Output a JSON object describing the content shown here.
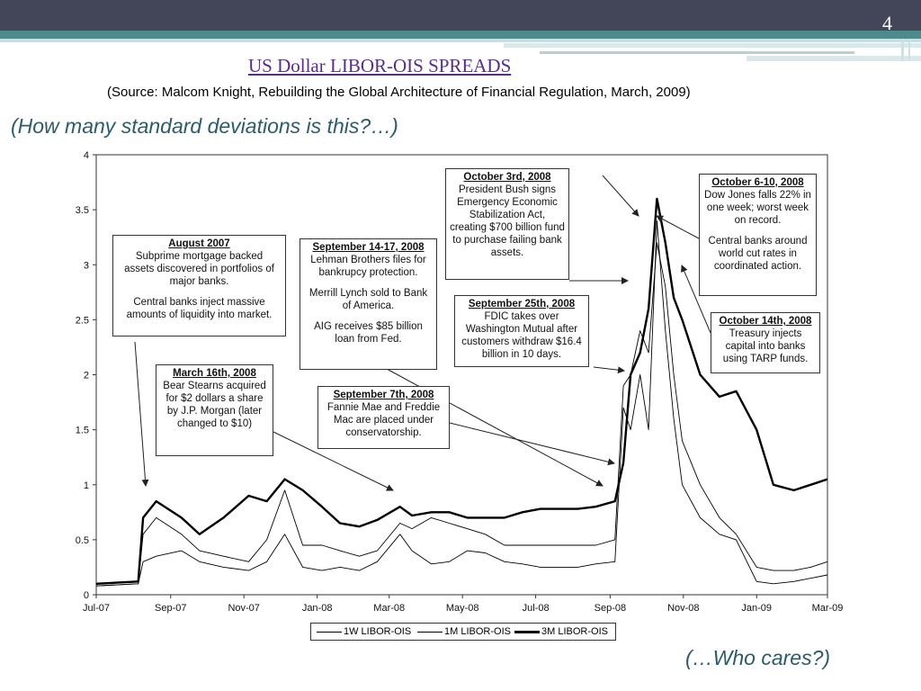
{
  "slide": {
    "number": "4",
    "title": "US Dollar LIBOR-OIS SPREADS",
    "source": "(Source:  Malcom Knight, Rebuilding the Global Architecture of Financial Regulation, March, 2009)",
    "question_top": "(How many standard deviations is this?…)",
    "question_bottom": "(…Who cares?)"
  },
  "annotations": {
    "aug2007": {
      "heading": "August 2007",
      "lines": [
        "Subprime mortgage backed",
        "assets discovered in portfolios of",
        "major banks.",
        "",
        "Central banks inject massive",
        "amounts of liquidity into market."
      ]
    },
    "mar2008": {
      "heading": "March 16th, 2008",
      "lines": [
        "Bear Stearns acquired",
        "for $2 dollars a share",
        "by J.P. Morgan (later",
        "changed to $10)"
      ]
    },
    "sep1417": {
      "heading": "September 14-17, 2008",
      "lines": [
        "Lehman Brothers files for",
        "bankrupcy protection.",
        "",
        "Merrill Lynch sold to Bank",
        "of America.",
        "",
        "AIG receives $85 billion",
        "loan from Fed."
      ]
    },
    "sep7": {
      "heading": "September 7th, 2008",
      "lines": [
        "Fannie Mae and Freddie",
        "Mac are placed under",
        "conservatorship."
      ]
    },
    "oct3": {
      "heading": "October 3rd, 2008",
      "lines": [
        "President Bush signs",
        "Emergency Economic",
        "Stabilization Act,",
        "creating $700 billion fund",
        "to purchase failing bank",
        "assets."
      ]
    },
    "sep25": {
      "heading": "September 25th, 2008",
      "lines": [
        "FDIC takes over",
        "Washington Mutual after",
        "customers withdraw $16.4",
        "billion in 10 days."
      ]
    },
    "oct610": {
      "heading": "October 6-10, 2008",
      "lines": [
        "Dow Jones falls 22% in",
        "one week; worst week",
        "on record.",
        "",
        "Central banks around",
        "world cut rates in",
        "coordinated action."
      ]
    },
    "oct14": {
      "heading": "October 14th, 2008",
      "lines": [
        "Treasury injects",
        "capital into banks",
        "using TARP funds."
      ]
    }
  },
  "chart_data": {
    "type": "line",
    "title": "",
    "xlabel": "",
    "ylabel": "",
    "ylim": [
      0,
      4
    ],
    "yticks": [
      "0",
      "0.5",
      "1",
      "1.5",
      "2",
      "2.5",
      "3",
      "3.5",
      "4"
    ],
    "xtick_labels": [
      "Jul-07",
      "Sep-07",
      "Nov-07",
      "Jan-08",
      "Mar-08",
      "May-08",
      "Jul-08",
      "Sep-08",
      "Nov-08",
      "Jan-09",
      "Mar-09"
    ],
    "x": [
      "2007-07-01",
      "2007-08-05",
      "2007-08-09",
      "2007-08-20",
      "2007-09-10",
      "2007-09-25",
      "2007-10-15",
      "2007-11-05",
      "2007-11-20",
      "2007-12-05",
      "2007-12-20",
      "2008-01-05",
      "2008-01-20",
      "2008-02-05",
      "2008-02-20",
      "2008-03-10",
      "2008-03-20",
      "2008-04-05",
      "2008-04-20",
      "2008-05-05",
      "2008-05-20",
      "2008-06-05",
      "2008-06-20",
      "2008-07-05",
      "2008-07-20",
      "2008-08-05",
      "2008-08-20",
      "2008-09-05",
      "2008-09-12",
      "2008-09-18",
      "2008-09-26",
      "2008-10-03",
      "2008-10-10",
      "2008-10-17",
      "2008-10-24",
      "2008-10-31",
      "2008-11-15",
      "2008-12-01",
      "2008-12-15",
      "2009-01-01",
      "2009-01-15",
      "2009-02-01",
      "2009-02-15",
      "2009-03-01"
    ],
    "series": [
      {
        "name": "1W LIBOR-OIS",
        "color": "#000000",
        "values": [
          0.08,
          0.1,
          0.3,
          0.35,
          0.4,
          0.3,
          0.25,
          0.22,
          0.3,
          0.55,
          0.25,
          0.22,
          0.25,
          0.22,
          0.3,
          0.55,
          0.4,
          0.28,
          0.3,
          0.4,
          0.38,
          0.3,
          0.28,
          0.25,
          0.25,
          0.25,
          0.28,
          0.3,
          1.7,
          1.5,
          2.0,
          1.5,
          3.4,
          2.4,
          1.6,
          1.0,
          0.7,
          0.55,
          0.5,
          0.12,
          0.1,
          0.12,
          0.15,
          0.18
        ]
      },
      {
        "name": "1M LIBOR-OIS",
        "color": "#000000",
        "values": [
          0.08,
          0.1,
          0.55,
          0.7,
          0.55,
          0.4,
          0.35,
          0.3,
          0.5,
          0.95,
          0.45,
          0.45,
          0.4,
          0.35,
          0.4,
          0.65,
          0.6,
          0.7,
          0.65,
          0.6,
          0.55,
          0.45,
          0.45,
          0.45,
          0.45,
          0.45,
          0.45,
          0.5,
          1.9,
          2.0,
          2.4,
          2.2,
          3.2,
          2.8,
          2.0,
          1.4,
          1.0,
          0.7,
          0.55,
          0.25,
          0.22,
          0.22,
          0.25,
          0.3
        ]
      },
      {
        "name": "3M LIBOR-OIS",
        "color": "#000000",
        "values": [
          0.1,
          0.12,
          0.7,
          0.85,
          0.7,
          0.55,
          0.7,
          0.9,
          0.85,
          1.05,
          0.95,
          0.8,
          0.65,
          0.62,
          0.68,
          0.8,
          0.72,
          0.75,
          0.75,
          0.7,
          0.7,
          0.7,
          0.75,
          0.78,
          0.78,
          0.78,
          0.8,
          0.85,
          1.2,
          2.0,
          2.2,
          2.6,
          3.6,
          3.2,
          2.7,
          2.5,
          2.0,
          1.8,
          1.85,
          1.5,
          1.0,
          0.95,
          1.0,
          1.05
        ]
      }
    ],
    "legend": "bottom-center",
    "grid": false
  }
}
